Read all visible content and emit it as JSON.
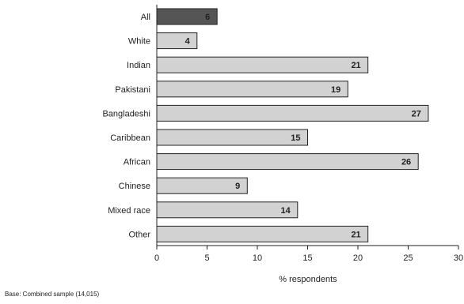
{
  "chart_data": {
    "type": "bar",
    "orientation": "horizontal",
    "categories": [
      "All",
      "White",
      "Indian",
      "Pakistani",
      "Bangladeshi",
      "Caribbean",
      "African",
      "Chinese",
      "Mixed race",
      "Other"
    ],
    "values": [
      6,
      4,
      21,
      19,
      27,
      15,
      26,
      9,
      14,
      21
    ],
    "value_labels": [
      "6",
      "4",
      "21",
      "19",
      "27",
      "15",
      "26",
      "9",
      "14",
      "21"
    ],
    "xlabel": "% respondents",
    "ylabel": "",
    "xlim": [
      0,
      30
    ],
    "xticks": [
      0,
      5,
      10,
      15,
      20,
      25,
      30
    ],
    "tick_labels": [
      "0",
      "5",
      "10",
      "15",
      "20",
      "25",
      "30"
    ],
    "grid": false,
    "legend": "none",
    "colors": {
      "highlight_bar": "#555555",
      "bar": "#d2d2d2",
      "bar_stroke": "#222222",
      "axis": "#222222"
    },
    "highlight_category": "All"
  },
  "footnote": "Base: Combined sample (14,015)"
}
